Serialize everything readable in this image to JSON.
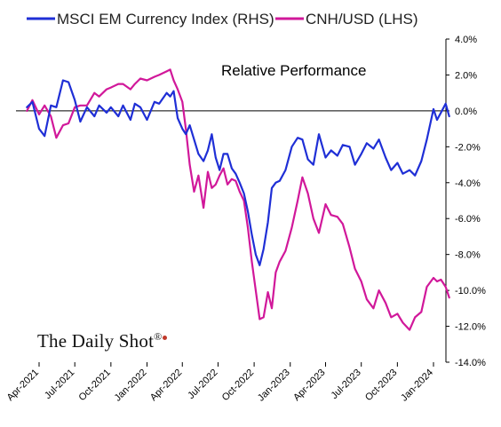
{
  "brand": {
    "name": "The Daily Shot",
    "mark": "®"
  },
  "colors": {
    "em_index": "#1f2fd6",
    "cnh_usd": "#d1189a",
    "axis": "#000000",
    "brand_dot": "#c0392b"
  },
  "chart_data": {
    "type": "line",
    "title": "",
    "annotation": "Relative Performance",
    "legend": {
      "position": "top",
      "entries": [
        "MSCI EM Currency Index (RHS)",
        "CNH/USD (LHS)"
      ]
    },
    "grid": false,
    "x_tick_labels": [
      "Apr-2021",
      "Jul-2021",
      "Oct-2021",
      "Jan-2022",
      "Apr-2022",
      "Jul-2022",
      "Oct-2022",
      "Jan-2023",
      "Apr-2023",
      "Jul-2023",
      "Oct-2023",
      "Jan-2024"
    ],
    "y_tick_labels": [
      "4.0%",
      "2.0%",
      "0.0%",
      "-2.0%",
      "-4.0%",
      "-6.0%",
      "-8.0%",
      "-10.0%",
      "-12.0%",
      "-14.0%"
    ],
    "ylim": [
      -14,
      4
    ],
    "baseline": 0,
    "series": [
      {
        "name": "MSCI EM Currency Index (RHS)",
        "axis": "right",
        "x": [
          "2021-03-01",
          "2021-03-15",
          "2021-04-01",
          "2021-04-15",
          "2021-05-01",
          "2021-05-15",
          "2021-06-01",
          "2021-06-15",
          "2021-07-01",
          "2021-07-15",
          "2021-08-01",
          "2021-08-20",
          "2021-09-01",
          "2021-09-20",
          "2021-10-01",
          "2021-10-20",
          "2021-11-01",
          "2021-11-20",
          "2021-12-01",
          "2021-12-15",
          "2022-01-01",
          "2022-01-20",
          "2022-02-01",
          "2022-02-20",
          "2022-03-01",
          "2022-03-10",
          "2022-03-20",
          "2022-04-01",
          "2022-04-10",
          "2022-04-20",
          "2022-05-01",
          "2022-05-12",
          "2022-05-25",
          "2022-06-05",
          "2022-06-15",
          "2022-06-25",
          "2022-07-05",
          "2022-07-15",
          "2022-07-25",
          "2022-08-05",
          "2022-08-15",
          "2022-08-25",
          "2022-09-05",
          "2022-09-15",
          "2022-09-25",
          "2022-10-05",
          "2022-10-15",
          "2022-10-25",
          "2022-11-05",
          "2022-11-15",
          "2022-11-25",
          "2022-12-05",
          "2022-12-20",
          "2023-01-05",
          "2023-01-20",
          "2023-02-01",
          "2023-02-15",
          "2023-03-01",
          "2023-03-15",
          "2023-04-01",
          "2023-04-15",
          "2023-05-01",
          "2023-05-15",
          "2023-06-01",
          "2023-06-15",
          "2023-07-01",
          "2023-07-15",
          "2023-08-01",
          "2023-08-15",
          "2023-09-01",
          "2023-09-15",
          "2023-10-01",
          "2023-10-15",
          "2023-11-01",
          "2023-11-15",
          "2023-12-01",
          "2023-12-15",
          "2024-01-01",
          "2024-01-10",
          "2024-01-20",
          "2024-02-01",
          "2024-02-10"
        ],
        "y": [
          0.2,
          0.5,
          -1.0,
          -1.4,
          0.3,
          0.2,
          1.7,
          1.6,
          0.6,
          -0.6,
          0.2,
          -0.3,
          0.3,
          -0.1,
          0.2,
          -0.3,
          0.3,
          -0.5,
          0.4,
          0.2,
          -0.5,
          0.5,
          0.4,
          1.0,
          0.8,
          1.1,
          -0.4,
          -1.0,
          -1.3,
          -0.8,
          -1.6,
          -2.4,
          -2.8,
          -2.2,
          -1.3,
          -2.6,
          -3.3,
          -2.4,
          -2.4,
          -3.2,
          -3.5,
          -4.0,
          -4.6,
          -5.6,
          -6.9,
          -8.0,
          -8.6,
          -7.7,
          -6.2,
          -4.3,
          -4.0,
          -3.9,
          -3.3,
          -2.0,
          -1.5,
          -1.6,
          -2.7,
          -3.0,
          -1.3,
          -2.6,
          -2.2,
          -2.5,
          -1.9,
          -2.0,
          -3.0,
          -2.4,
          -1.8,
          -2.1,
          -1.6,
          -2.6,
          -3.3,
          -2.9,
          -3.5,
          -3.3,
          -3.6,
          -2.8,
          -1.6,
          0.1,
          -0.5,
          -0.1,
          0.4,
          -0.3
        ]
      },
      {
        "name": "CNH/USD (LHS)",
        "axis": "left",
        "x": [
          "2021-03-01",
          "2021-03-15",
          "2021-04-01",
          "2021-04-15",
          "2021-05-01",
          "2021-05-15",
          "2021-06-01",
          "2021-06-15",
          "2021-07-01",
          "2021-07-15",
          "2021-08-01",
          "2021-08-20",
          "2021-09-01",
          "2021-09-20",
          "2021-10-01",
          "2021-10-20",
          "2021-11-01",
          "2021-11-20",
          "2021-12-01",
          "2021-12-15",
          "2022-01-01",
          "2022-01-20",
          "2022-02-01",
          "2022-02-20",
          "2022-03-01",
          "2022-03-10",
          "2022-03-20",
          "2022-04-01",
          "2022-04-10",
          "2022-04-20",
          "2022-05-01",
          "2022-05-12",
          "2022-05-25",
          "2022-06-05",
          "2022-06-15",
          "2022-06-25",
          "2022-07-05",
          "2022-07-15",
          "2022-07-25",
          "2022-08-05",
          "2022-08-15",
          "2022-08-25",
          "2022-09-05",
          "2022-09-15",
          "2022-09-25",
          "2022-10-05",
          "2022-10-15",
          "2022-10-25",
          "2022-11-05",
          "2022-11-15",
          "2022-11-25",
          "2022-12-05",
          "2022-12-20",
          "2023-01-05",
          "2023-01-20",
          "2023-02-01",
          "2023-02-15",
          "2023-03-01",
          "2023-03-15",
          "2023-04-01",
          "2023-04-15",
          "2023-05-01",
          "2023-05-15",
          "2023-06-01",
          "2023-06-15",
          "2023-07-01",
          "2023-07-15",
          "2023-08-01",
          "2023-08-15",
          "2023-09-01",
          "2023-09-15",
          "2023-10-01",
          "2023-10-15",
          "2023-11-01",
          "2023-11-15",
          "2023-12-01",
          "2023-12-15",
          "2024-01-01",
          "2024-01-10",
          "2024-01-20",
          "2024-02-01",
          "2024-02-10"
        ],
        "y": [
          0.0,
          0.6,
          -0.2,
          0.3,
          -0.3,
          -1.5,
          -0.8,
          -0.7,
          0.2,
          0.3,
          0.3,
          1.0,
          0.8,
          1.2,
          1.3,
          1.5,
          1.5,
          1.2,
          1.5,
          1.8,
          1.7,
          1.9,
          2.0,
          2.2,
          2.3,
          1.7,
          1.2,
          0.5,
          -1.0,
          -3.0,
          -4.5,
          -3.6,
          -5.4,
          -3.4,
          -4.3,
          -4.1,
          -3.6,
          -3.2,
          -4.1,
          -3.8,
          -3.9,
          -4.5,
          -5.0,
          -6.5,
          -8.4,
          -10.0,
          -11.6,
          -11.5,
          -10.1,
          -11.0,
          -9.0,
          -8.4,
          -7.8,
          -6.5,
          -5.0,
          -3.7,
          -4.6,
          -6.0,
          -6.8,
          -5.2,
          -5.8,
          -5.9,
          -6.3,
          -7.6,
          -8.8,
          -9.5,
          -10.5,
          -11.0,
          -10.0,
          -10.7,
          -11.5,
          -11.3,
          -11.8,
          -12.2,
          -11.5,
          -11.2,
          -9.8,
          -9.3,
          -9.5,
          -9.4,
          -9.8,
          -10.4
        ]
      }
    ]
  }
}
